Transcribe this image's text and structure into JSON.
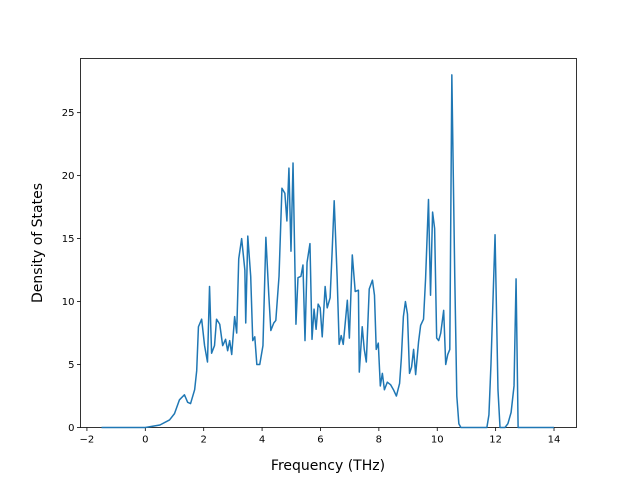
{
  "chart_data": {
    "type": "line",
    "xlabel": "Frequency (THz)",
    "ylabel": "Density of States",
    "color": "#1f77b4",
    "x": [
      -1.5,
      0,
      0.5,
      0.83,
      1.0,
      1.17,
      1.34,
      1.45,
      1.55,
      1.69,
      1.76,
      1.82,
      1.93,
      2.03,
      2.13,
      2.2,
      2.27,
      2.37,
      2.44,
      2.55,
      2.65,
      2.75,
      2.82,
      2.89,
      2.96,
      3.06,
      3.13,
      3.2,
      3.3,
      3.41,
      3.44,
      3.51,
      3.61,
      3.68,
      3.75,
      3.82,
      3.92,
      4.03,
      4.13,
      4.23,
      4.3,
      4.4,
      4.47,
      4.58,
      4.68,
      4.78,
      4.85,
      4.92,
      4.99,
      5.06,
      5.16,
      5.23,
      5.33,
      5.4,
      5.47,
      5.54,
      5.64,
      5.71,
      5.78,
      5.85,
      5.92,
      5.99,
      6.06,
      6.16,
      6.23,
      6.33,
      6.4,
      6.47,
      6.57,
      6.64,
      6.71,
      6.78,
      6.92,
      6.99,
      7.09,
      7.19,
      7.3,
      7.33,
      7.43,
      7.5,
      7.57,
      7.67,
      7.78,
      7.85,
      7.91,
      7.98,
      8.05,
      8.12,
      8.19,
      8.29,
      8.4,
      8.5,
      8.6,
      8.71,
      8.77,
      8.84,
      8.91,
      8.98,
      9.05,
      9.12,
      9.19,
      9.26,
      9.36,
      9.43,
      9.53,
      9.6,
      9.7,
      9.77,
      9.84,
      9.91,
      9.98,
      10.05,
      10.12,
      10.22,
      10.29,
      10.36,
      10.43,
      10.5,
      10.6,
      10.67,
      10.74,
      10.81,
      11.7,
      11.77,
      11.84,
      11.98,
      12.08,
      12.15,
      12.32,
      12.42,
      12.53,
      12.63,
      12.7,
      12.77,
      14.0
    ],
    "values": [
      0,
      0,
      0.2,
      0.6,
      1.1,
      2.2,
      2.6,
      2.0,
      1.9,
      3.0,
      4.5,
      8.0,
      8.6,
      6.5,
      5.2,
      11.2,
      5.9,
      6.5,
      8.6,
      8.2,
      6.5,
      7.0,
      6.1,
      6.9,
      5.8,
      8.8,
      7.5,
      13.4,
      15.0,
      12.5,
      8.3,
      15.2,
      12.0,
      6.9,
      7.2,
      5.0,
      5.0,
      6.5,
      15.1,
      10.5,
      7.7,
      8.3,
      8.5,
      12.0,
      19.0,
      18.6,
      16.4,
      20.6,
      14.0,
      21.0,
      8.2,
      11.9,
      12.0,
      12.9,
      6.9,
      13.1,
      14.6,
      7.0,
      9.4,
      7.8,
      9.8,
      9.5,
      7.2,
      11.2,
      9.5,
      10.3,
      14.0,
      18.0,
      12.0,
      6.6,
      7.3,
      6.6,
      10.1,
      7.1,
      13.7,
      10.8,
      10.9,
      4.4,
      8.0,
      6.2,
      5.2,
      11.0,
      11.7,
      10.5,
      6.2,
      6.7,
      3.3,
      4.3,
      3.0,
      3.6,
      3.4,
      3.0,
      2.5,
      3.5,
      5.5,
      8.8,
      10.0,
      9.0,
      4.3,
      4.8,
      6.2,
      4.2,
      6.8,
      8.1,
      8.6,
      11.8,
      18.1,
      10.5,
      17.1,
      15.8,
      7.1,
      6.9,
      7.5,
      9.3,
      5.0,
      5.8,
      6.2,
      28.0,
      12.0,
      2.5,
      0.3,
      0,
      0,
      1.0,
      5.0,
      15.3,
      3.0,
      0,
      0,
      0.3,
      1.2,
      3.3,
      11.8,
      0,
      0
    ],
    "xlim": [
      -2.22,
      14.77
    ],
    "ylim": [
      0,
      29.3
    ],
    "xticks": [
      {
        "value": -2,
        "label": "−2"
      },
      0,
      2,
      4,
      6,
      8,
      10,
      12,
      14
    ],
    "yticks": [
      0,
      5,
      10,
      15,
      20,
      25
    ]
  }
}
